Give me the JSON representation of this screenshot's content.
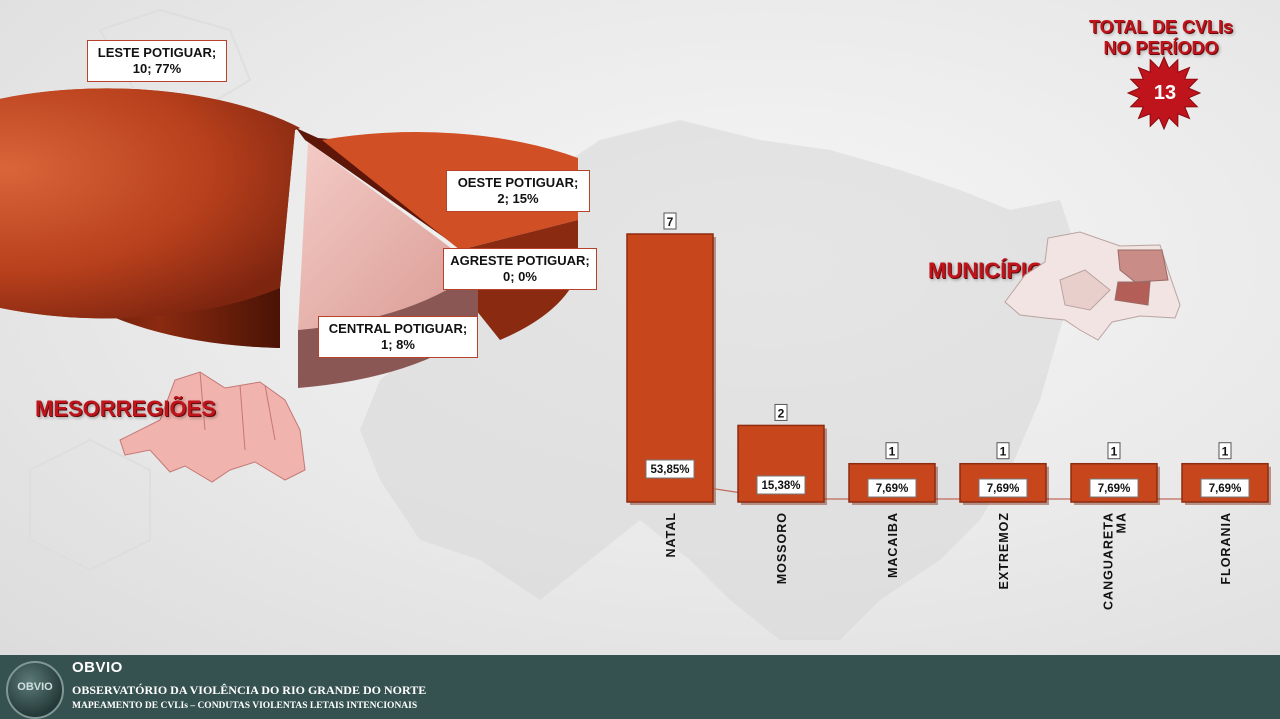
{
  "header": {
    "total_title_line1": "TOTAL DE CVLIs",
    "total_title_line2": "NO PERÍODO",
    "total_value": "13"
  },
  "sections": {
    "mesorregioes_title": "MESORREGIÕES",
    "municipios_title": "MUNICÍPIOS"
  },
  "chart_data": [
    {
      "type": "pie",
      "slices": [
        {
          "name": "LESTE POTIGUAR",
          "value": 10,
          "percent": 77,
          "label": "LESTE POTIGUAR;",
          "sublabel": "10; 77%",
          "color": "#b8401c"
        },
        {
          "name": "OESTE POTIGUAR",
          "value": 2,
          "percent": 15,
          "label": "OESTE POTIGUAR;",
          "sublabel": "2; 15%",
          "color": "#d04f24"
        },
        {
          "name": "AGRESTE POTIGUAR",
          "value": 0,
          "percent": 0,
          "label": "AGRESTE POTIGUAR;",
          "sublabel": "0; 0%",
          "color": "#6a1a0a"
        },
        {
          "name": "CENTRAL POTIGUAR",
          "value": 1,
          "percent": 8,
          "label": "CENTRAL POTIGUAR;",
          "sublabel": "1; 8%",
          "color": "#e9b3ad"
        }
      ]
    },
    {
      "type": "bar",
      "categories": [
        "NATAL",
        "MOSSORO",
        "MACAIBA",
        "EXTREMOZ",
        "CANGUARETA MA",
        "FLORANIA"
      ],
      "category_lines": [
        [
          "NATAL"
        ],
        [
          "MOSSORO"
        ],
        [
          "MACAIBA"
        ],
        [
          "EXTREMOZ"
        ],
        [
          "CANGUARETA",
          "MA"
        ],
        [
          "FLORANIA"
        ]
      ],
      "values": [
        7,
        2,
        1,
        1,
        1,
        1
      ],
      "value_labels": [
        "7",
        "2",
        "1",
        "1",
        "1",
        "1"
      ],
      "percents": [
        "53,85%",
        "15,38%",
        "7,69%",
        "7,69%",
        "7,69%",
        "7,69%"
      ],
      "percent_values": [
        53.85,
        15.38,
        7.69,
        7.69,
        7.69,
        7.69
      ],
      "ylim": [
        0,
        7
      ],
      "bar_color": "#c8461c"
    }
  ],
  "footer": {
    "brand": "OBVIO",
    "logo_text": "OBVIO",
    "line1": "OBSERVATÓRIO  DA VIOLÊNCIA  DO RIO  GRANDE DO NORTE",
    "line2": "MAPEAMENTO DE CVLIs – CONDUTAS VIOLENTAS LETAIS INTENCIONAIS"
  }
}
